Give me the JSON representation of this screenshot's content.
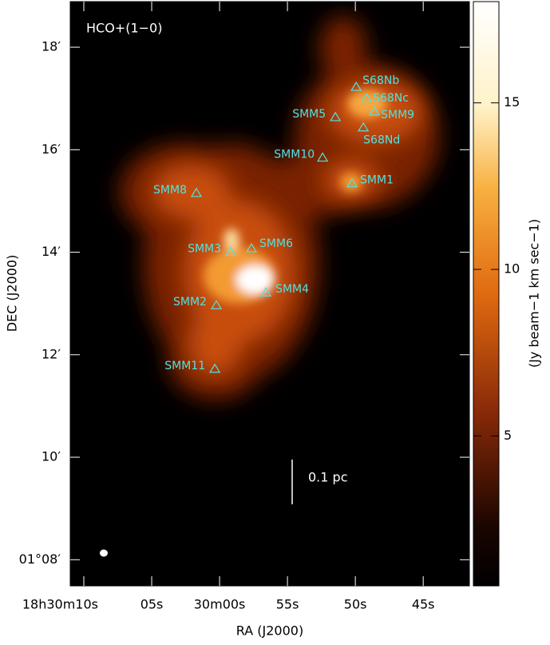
{
  "chart_data": {
    "type": "map",
    "title": "HCO+(1−0)",
    "x_label": "RA (J2000)",
    "y_label": "DEC (J2000)",
    "colorbar_label": "(Jy beam−1 km sec−1)",
    "scale_bar_label": "0.1 pc",
    "xlim": [
      11.0,
      -18.4
    ],
    "ylim": [
      7.49,
      18.89
    ],
    "xticks": [
      {
        "value": 10,
        "label": "18h30m10s"
      },
      {
        "value": 5,
        "label": "05s"
      },
      {
        "value": 0,
        "label": "30m00s"
      },
      {
        "value": -5,
        "label": "55s"
      },
      {
        "value": -10,
        "label": "50s"
      },
      {
        "value": -15,
        "label": "45s"
      }
    ],
    "yticks": [
      {
        "value": 8,
        "label": "01°08′"
      },
      {
        "value": 10,
        "label": "10′"
      },
      {
        "value": 12,
        "label": "12′"
      },
      {
        "value": 14,
        "label": "14′"
      },
      {
        "value": 16,
        "label": "16′"
      },
      {
        "value": 18,
        "label": "18′"
      }
    ],
    "clim": [
      0.5,
      18.04
    ],
    "cticks": [
      5,
      10,
      15
    ],
    "marker_color": "#4fe3e3",
    "sources": [
      {
        "name": "S68Nb",
        "ra": -10.06,
        "dec": 17.22
      },
      {
        "name": "S68Nc",
        "ra": -10.82,
        "dec": 17.0
      },
      {
        "name": "SMM5",
        "ra": -8.53,
        "dec": 16.63
      },
      {
        "name": "SMM9",
        "ra": -11.41,
        "dec": 16.74
      },
      {
        "name": "S68Nd",
        "ra": -10.59,
        "dec": 16.43
      },
      {
        "name": "SMM10",
        "ra": -7.59,
        "dec": 15.84
      },
      {
        "name": "SMM1",
        "ra": -9.76,
        "dec": 15.34
      },
      {
        "name": "SMM8",
        "ra": 1.71,
        "dec": 15.15
      },
      {
        "name": "SMM3",
        "ra": -0.82,
        "dec": 14.0
      },
      {
        "name": "SMM6",
        "ra": -2.35,
        "dec": 14.07
      },
      {
        "name": "SMM4",
        "ra": -3.41,
        "dec": 13.21
      },
      {
        "name": "SMM2",
        "ra": 0.24,
        "dec": 12.96
      },
      {
        "name": "SMM11",
        "ra": 0.35,
        "dec": 11.72
      }
    ]
  }
}
